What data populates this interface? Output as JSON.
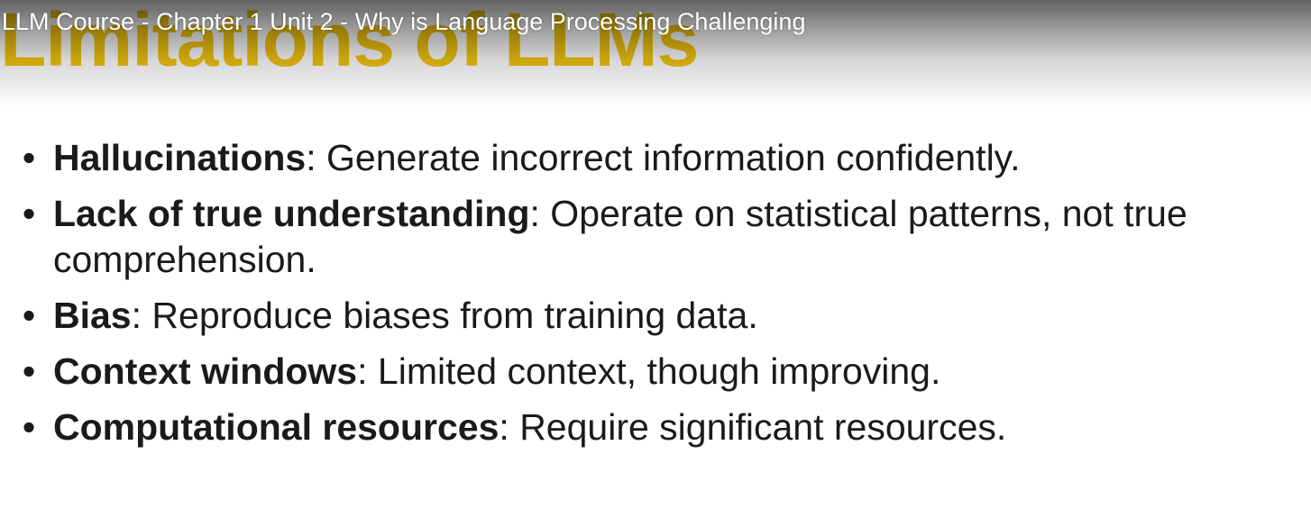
{
  "video": {
    "title": "LLM Course - Chapter 1 Unit 2 - Why is Language Processing Challenging"
  },
  "slide": {
    "title": "Limitations of LLMs",
    "bullets": [
      {
        "term": "Hallucinations",
        "separator": ":",
        "text": " Generate incorrect information confidently."
      },
      {
        "term": "Lack of true understanding",
        "separator": ":",
        "text": " Operate on statistical patterns, not true comprehension."
      },
      {
        "term": "Bias",
        "separator": ":",
        "text": " Reproduce biases from training data."
      },
      {
        "term": "Context windows",
        "separator": ":",
        "text": " Limited context, though improving."
      },
      {
        "term": "Computational resources",
        "separator": ":",
        "text": " Require significant resources."
      }
    ]
  },
  "colors": {
    "title": "#f2c40c",
    "body_text": "#1a1a1a",
    "background": "#ffffff"
  }
}
